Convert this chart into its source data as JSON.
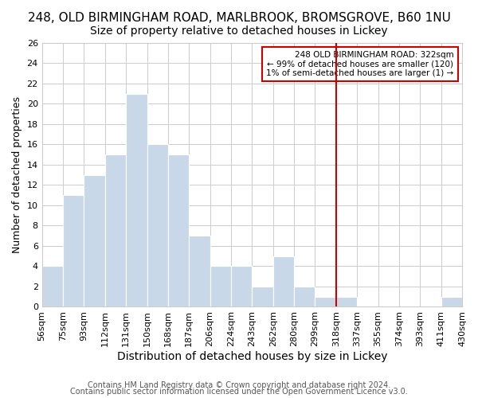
{
  "title": "248, OLD BIRMINGHAM ROAD, MARLBROOK, BROMSGROVE, B60 1NU",
  "subtitle": "Size of property relative to detached houses in Lickey",
  "xlabel": "Distribution of detached houses by size in Lickey",
  "ylabel": "Number of detached properties",
  "bin_labels": [
    "56sqm",
    "75sqm",
    "93sqm",
    "112sqm",
    "131sqm",
    "150sqm",
    "168sqm",
    "187sqm",
    "206sqm",
    "224sqm",
    "243sqm",
    "262sqm",
    "280sqm",
    "299sqm",
    "318sqm",
    "337sqm",
    "355sqm",
    "374sqm",
    "393sqm",
    "411sqm",
    "430sqm"
  ],
  "bar_heights": [
    4,
    11,
    13,
    15,
    21,
    16,
    15,
    7,
    4,
    4,
    2,
    5,
    2,
    1,
    1,
    0,
    0,
    0,
    0,
    1
  ],
  "bar_color": "#c8d8e8",
  "bar_edge_color": "#ffffff",
  "grid_color": "#cccccc",
  "red_line_bin": 14,
  "red_line_x_label": "318sqm",
  "annotation_title": "248 OLD BIRMINGHAM ROAD: 322sqm",
  "annotation_line1": "← 99% of detached houses are smaller (120)",
  "annotation_line2": "1% of semi-detached houses are larger (1) →",
  "annotation_box_color": "#ffffff",
  "annotation_border_color": "#cc0000",
  "red_line_color": "#cc0000",
  "ylim": [
    0,
    26
  ],
  "yticks": [
    0,
    2,
    4,
    6,
    8,
    10,
    12,
    14,
    16,
    18,
    20,
    22,
    24,
    26
  ],
  "footer1": "Contains HM Land Registry data © Crown copyright and database right 2024.",
  "footer2": "Contains public sector information licensed under the Open Government Licence v3.0.",
  "title_fontsize": 11,
  "subtitle_fontsize": 10,
  "xlabel_fontsize": 10,
  "ylabel_fontsize": 9,
  "tick_fontsize": 8,
  "footer_fontsize": 7
}
